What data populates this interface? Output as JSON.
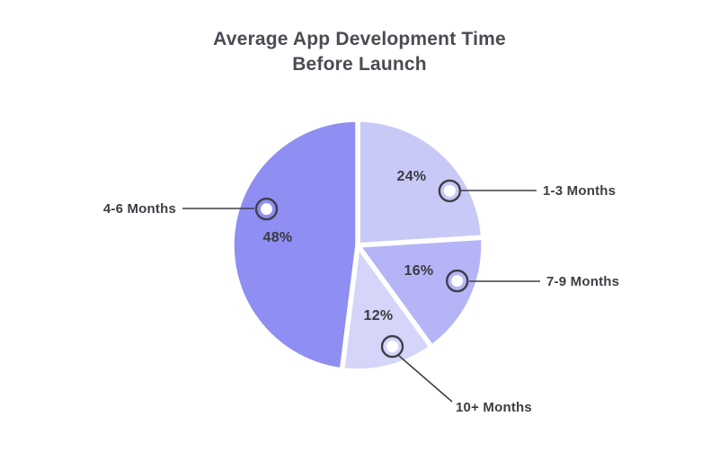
{
  "title": {
    "line1": "Average App Development Time",
    "line2": "Before Launch"
  },
  "chart_data": {
    "type": "pie",
    "title": "Average App Development Time Before Launch",
    "start_angle": "top",
    "direction": "clockwise",
    "legend_position": "callout-labels",
    "slices": [
      {
        "label": "1-3 Months",
        "value": 24,
        "pct_label": "24%",
        "color": "#c9c9f8"
      },
      {
        "label": "7-9 Months",
        "value": 16,
        "pct_label": "16%",
        "color": "#b4b4f6"
      },
      {
        "label": "10+ Months",
        "value": 12,
        "pct_label": "12%",
        "color": "#d5d5fa"
      },
      {
        "label": "4-6 Months",
        "value": 48,
        "pct_label": "48%",
        "color": "#8e8ef3"
      }
    ],
    "colors": {
      "background": "#ffffff",
      "slice_gap": "#ffffff",
      "callout_line": "#3f3f46",
      "marker_ring": "#3f3f46",
      "marker_fill": "#ffffff",
      "label_text": "#3d3d44",
      "title_text": "#4b4b53"
    }
  }
}
